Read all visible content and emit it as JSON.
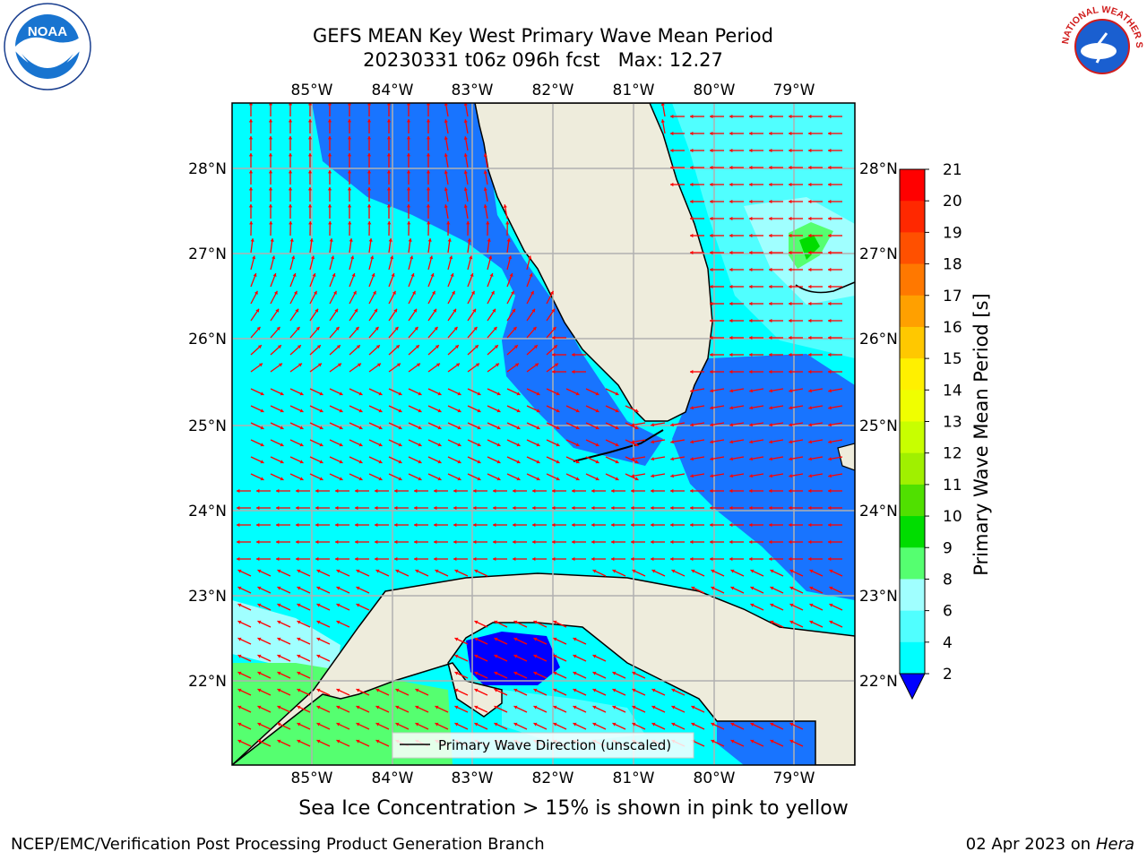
{
  "title": {
    "line1": "GEFS MEAN Key West Primary Wave Mean Period",
    "line2": "20230331 t06z 096h fcst   Max: 12.27"
  },
  "map": {
    "lon_ticks": [
      "85°W",
      "84°W",
      "83°W",
      "82°W",
      "81°W",
      "80°W",
      "79°W"
    ],
    "lat_ticks": [
      "28°N",
      "27°N",
      "26°N",
      "25°N",
      "24°N",
      "23°N",
      "22°N"
    ],
    "colors": {
      "land": "#eeecdc",
      "coast": "#000000",
      "grid": "#b0b0b0",
      "arrow": "#ff0000",
      "ocean_cyan": "#00ffff",
      "ocean_blue": "#1874ff"
    },
    "legend_label": "Primary Wave Direction (unscaled)"
  },
  "colorbar": {
    "label": "Primary Wave Mean Period [s]",
    "ticks": [
      "21",
      "20",
      "19",
      "18",
      "17",
      "16",
      "15",
      "14",
      "13",
      "12",
      "11",
      "10",
      "9",
      "8",
      "6",
      "4",
      "2"
    ],
    "colors": [
      "#ff0000",
      "#ff2800",
      "#ff5000",
      "#ff7800",
      "#ffa000",
      "#ffc800",
      "#fff000",
      "#f0ff00",
      "#c8ff00",
      "#a0f000",
      "#50e000",
      "#00dd00",
      "#55ff70",
      "#a0ffff",
      "#50ffff",
      "#00ffff",
      "#1874ff"
    ],
    "extend_color": "#0000ff"
  },
  "sea_ice_note": "Sea Ice Concentration > 15% is shown in pink to yellow",
  "footer": {
    "left": "NCEP/EMC/Verification Post Processing Product Generation Branch",
    "right_date": "02 Apr 2023 on ",
    "right_host": "Hera"
  },
  "logos": {
    "left": "NOAA",
    "right": "NATIONAL WEATHER SERVICE"
  }
}
